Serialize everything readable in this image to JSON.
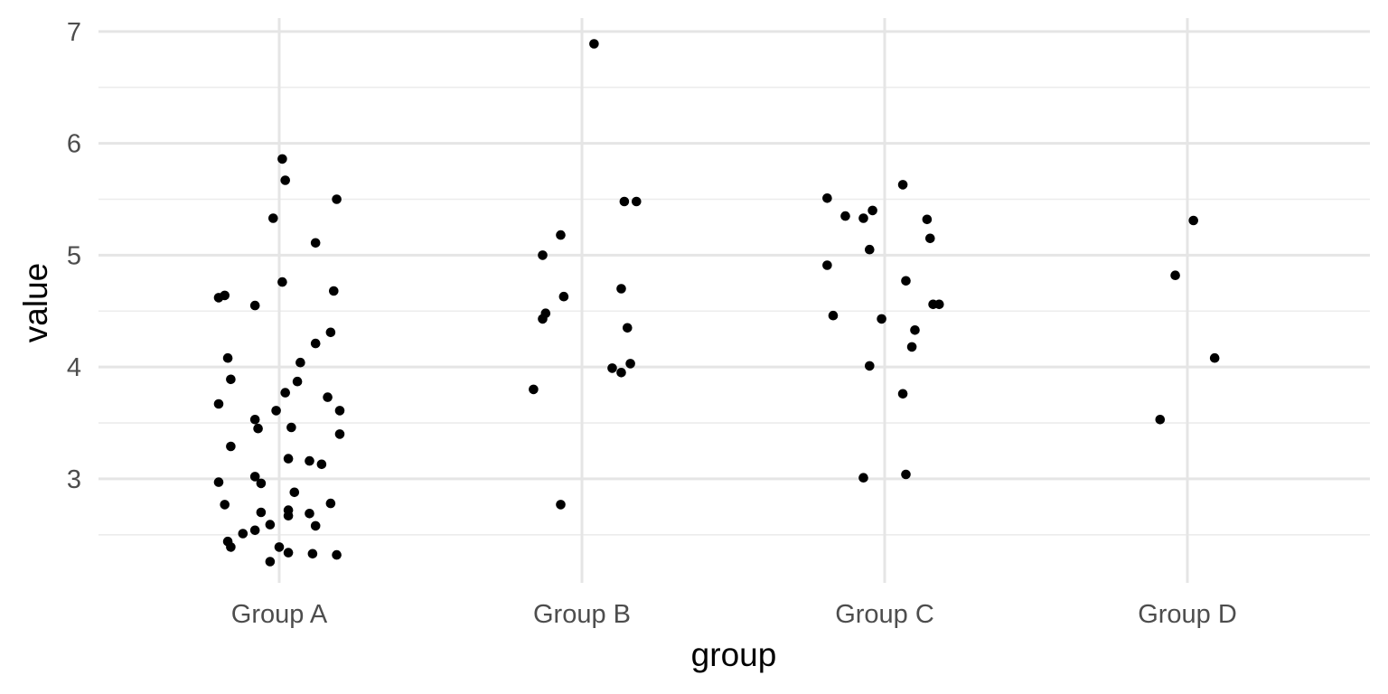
{
  "chart_data": {
    "type": "scatter",
    "title": "",
    "xlabel": "group",
    "ylabel": "value",
    "categories": [
      "Group A",
      "Group B",
      "Group C",
      "Group D"
    ],
    "ylim": [
      2.07,
      7.12
    ],
    "y_ticks": [
      3,
      4,
      5,
      6,
      7
    ],
    "y_tick_labels": [
      "3",
      "4",
      "5",
      "6",
      "7"
    ],
    "grid": true,
    "legend": "none",
    "jitter_note": "points jittered horizontally within each group",
    "series": [
      {
        "group": "Group A",
        "points": [
          {
            "x": 0.01,
            "y": 5.86
          },
          {
            "x": 0.02,
            "y": 5.67
          },
          {
            "x": 0.19,
            "y": 5.5
          },
          {
            "x": -0.02,
            "y": 5.33
          },
          {
            "x": 0.12,
            "y": 5.11
          },
          {
            "x": 0.01,
            "y": 4.76
          },
          {
            "x": 0.18,
            "y": 4.68
          },
          {
            "x": -0.18,
            "y": 4.64
          },
          {
            "x": -0.2,
            "y": 4.62
          },
          {
            "x": -0.08,
            "y": 4.55
          },
          {
            "x": 0.17,
            "y": 4.31
          },
          {
            "x": 0.12,
            "y": 4.21
          },
          {
            "x": -0.17,
            "y": 4.08
          },
          {
            "x": 0.07,
            "y": 4.04
          },
          {
            "x": -0.16,
            "y": 3.89
          },
          {
            "x": 0.06,
            "y": 3.87
          },
          {
            "x": 0.02,
            "y": 3.77
          },
          {
            "x": 0.16,
            "y": 3.73
          },
          {
            "x": -0.2,
            "y": 3.67
          },
          {
            "x": 0.2,
            "y": 3.61
          },
          {
            "x": -0.01,
            "y": 3.61
          },
          {
            "x": -0.08,
            "y": 3.53
          },
          {
            "x": 0.04,
            "y": 3.46
          },
          {
            "x": -0.07,
            "y": 3.45
          },
          {
            "x": 0.2,
            "y": 3.4
          },
          {
            "x": -0.16,
            "y": 3.29
          },
          {
            "x": 0.03,
            "y": 3.18
          },
          {
            "x": 0.1,
            "y": 3.16
          },
          {
            "x": 0.14,
            "y": 3.13
          },
          {
            "x": -0.08,
            "y": 3.02
          },
          {
            "x": -0.2,
            "y": 2.97
          },
          {
            "x": -0.06,
            "y": 2.96
          },
          {
            "x": 0.05,
            "y": 2.88
          },
          {
            "x": -0.18,
            "y": 2.77
          },
          {
            "x": 0.17,
            "y": 2.78
          },
          {
            "x": 0.03,
            "y": 2.72
          },
          {
            "x": -0.06,
            "y": 2.7
          },
          {
            "x": 0.1,
            "y": 2.69
          },
          {
            "x": 0.03,
            "y": 2.67
          },
          {
            "x": -0.03,
            "y": 2.59
          },
          {
            "x": 0.12,
            "y": 2.58
          },
          {
            "x": -0.08,
            "y": 2.54
          },
          {
            "x": -0.12,
            "y": 2.51
          },
          {
            "x": -0.17,
            "y": 2.44
          },
          {
            "x": -0.16,
            "y": 2.39
          },
          {
            "x": 0.0,
            "y": 2.39
          },
          {
            "x": 0.03,
            "y": 2.34
          },
          {
            "x": 0.11,
            "y": 2.33
          },
          {
            "x": 0.19,
            "y": 2.32
          },
          {
            "x": -0.03,
            "y": 2.26
          }
        ]
      },
      {
        "group": "Group B",
        "points": [
          {
            "x": 0.04,
            "y": 6.89
          },
          {
            "x": 0.14,
            "y": 5.48
          },
          {
            "x": 0.18,
            "y": 5.48
          },
          {
            "x": -0.07,
            "y": 5.18
          },
          {
            "x": -0.13,
            "y": 5.0
          },
          {
            "x": 0.13,
            "y": 4.7
          },
          {
            "x": -0.06,
            "y": 4.63
          },
          {
            "x": -0.12,
            "y": 4.48
          },
          {
            "x": -0.13,
            "y": 4.43
          },
          {
            "x": 0.15,
            "y": 4.35
          },
          {
            "x": 0.16,
            "y": 4.03
          },
          {
            "x": 0.1,
            "y": 3.99
          },
          {
            "x": 0.13,
            "y": 3.95
          },
          {
            "x": -0.16,
            "y": 3.8
          },
          {
            "x": -0.07,
            "y": 2.77
          }
        ]
      },
      {
        "group": "Group C",
        "points": [
          {
            "x": 0.06,
            "y": 5.63
          },
          {
            "x": -0.19,
            "y": 5.51
          },
          {
            "x": -0.04,
            "y": 5.4
          },
          {
            "x": -0.13,
            "y": 5.35
          },
          {
            "x": -0.07,
            "y": 5.33
          },
          {
            "x": 0.14,
            "y": 5.32
          },
          {
            "x": 0.15,
            "y": 5.15
          },
          {
            "x": -0.05,
            "y": 5.05
          },
          {
            "x": -0.19,
            "y": 4.91
          },
          {
            "x": 0.07,
            "y": 4.77
          },
          {
            "x": 0.16,
            "y": 4.56
          },
          {
            "x": 0.18,
            "y": 4.56
          },
          {
            "x": -0.17,
            "y": 4.46
          },
          {
            "x": -0.01,
            "y": 4.43
          },
          {
            "x": 0.1,
            "y": 4.33
          },
          {
            "x": 0.09,
            "y": 4.18
          },
          {
            "x": -0.05,
            "y": 4.01
          },
          {
            "x": 0.06,
            "y": 3.76
          },
          {
            "x": 0.07,
            "y": 3.04
          },
          {
            "x": -0.07,
            "y": 3.01
          }
        ]
      },
      {
        "group": "Group D",
        "points": [
          {
            "x": 0.02,
            "y": 5.31
          },
          {
            "x": -0.04,
            "y": 4.82
          },
          {
            "x": 0.09,
            "y": 4.08
          },
          {
            "x": -0.09,
            "y": 3.53
          }
        ]
      }
    ]
  }
}
